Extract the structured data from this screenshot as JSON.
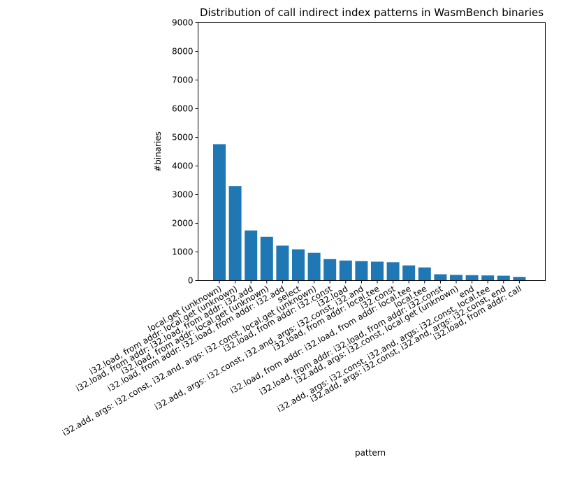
{
  "chart_data": {
    "type": "bar",
    "title": "Distribution of call indirect index patterns in WasmBench binaries",
    "xlabel": "pattern",
    "ylabel": "#binaries",
    "ylim": [
      0,
      9000
    ],
    "yticks": [
      0,
      1000,
      2000,
      3000,
      4000,
      5000,
      6000,
      7000,
      8000,
      9000
    ],
    "grid": false,
    "color": "#1f77b4",
    "categories": [
      "local.get (unknown)",
      "i32.load, from addr: local.get (unknown)",
      "i32.load, from addr: i32.load, from addr: i32.add",
      "i32.load, from addr: local.get (unknown)",
      "i32.load, from addr: i32.load, from addr: i32.add",
      "select",
      "i32.add, args: i32.const, i32.and, args: i32.const, local.get (unknown)",
      "i32.load, from addr: i32.const",
      "i32.load",
      "i32.add, args: i32.const, i32.and, args: i32.const, i32.and",
      "i32.load, from addr: local.tee",
      "i32.const",
      "i32.load, from addr: i32.load, from addr: local.tee",
      "local.tee",
      "i32.load, from addr: i32.load, from addr: i32.const",
      "i32.add, args: i32.const, local.get (unknown)",
      "end",
      "i32.add, args: i32.const, i32.and, args: i32.const, local.tee",
      "i32.add, args: i32.const, i32.and, args: i32.const, end",
      "i32.load, from addr: call"
    ],
    "values": [
      4760,
      3300,
      1750,
      1530,
      1220,
      1090,
      970,
      750,
      700,
      680,
      660,
      640,
      530,
      460,
      220,
      200,
      190,
      180,
      170,
      130
    ]
  }
}
